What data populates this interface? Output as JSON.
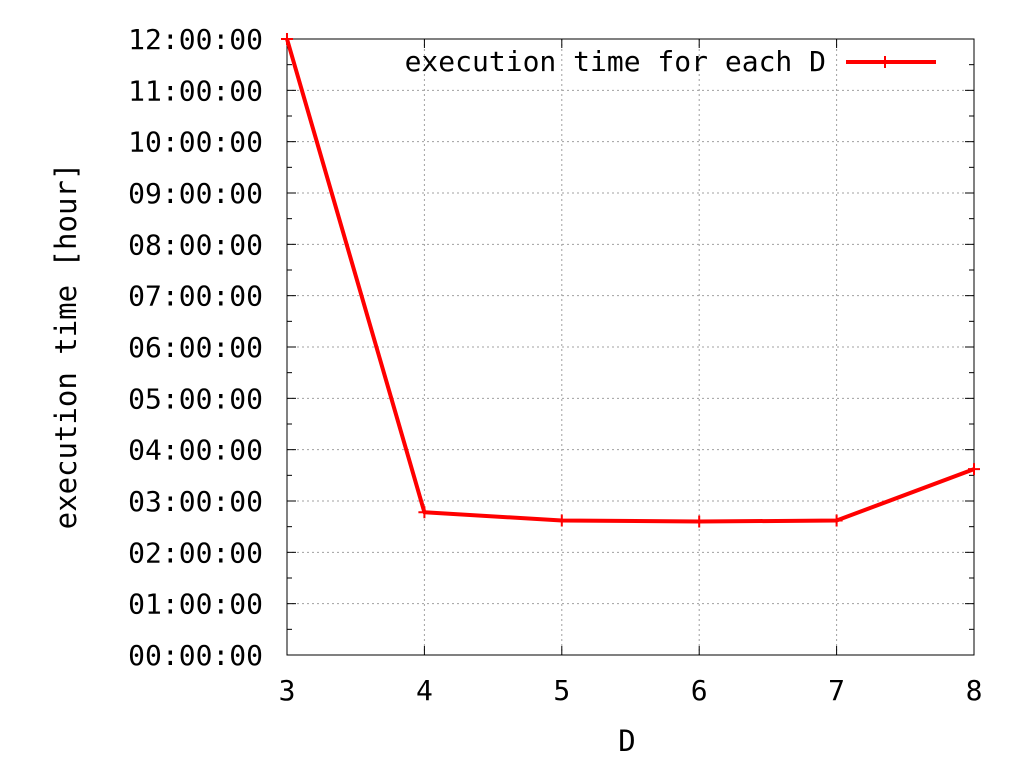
{
  "chart_data": {
    "type": "line",
    "title": "",
    "xlabel": "D",
    "ylabel": "execution time [hour]",
    "x": [
      3,
      4,
      5,
      6,
      7,
      8
    ],
    "xlim": [
      3,
      8
    ],
    "xticks": [
      "3",
      "4",
      "5",
      "6",
      "7",
      "8"
    ],
    "ylim_hours": [
      0,
      12
    ],
    "yticks_hours": [
      0,
      1,
      2,
      3,
      4,
      5,
      6,
      7,
      8,
      9,
      10,
      11,
      12
    ],
    "yticks": [
      "00:00:00",
      "01:00:00",
      "02:00:00",
      "03:00:00",
      "04:00:00",
      "05:00:00",
      "06:00:00",
      "07:00:00",
      "08:00:00",
      "09:00:00",
      "10:00:00",
      "11:00:00",
      "12:00:00"
    ],
    "grid": true,
    "legend_position": "top-right",
    "series": [
      {
        "name": "execution time for each D",
        "color": "#ff0000",
        "marker": "plus",
        "values_hours": [
          12.0,
          2.78,
          2.62,
          2.6,
          2.62,
          3.62
        ],
        "values": [
          "12:00:00",
          "02:46:48",
          "02:37:12",
          "02:36:00",
          "02:37:12",
          "03:37:12"
        ]
      }
    ]
  }
}
